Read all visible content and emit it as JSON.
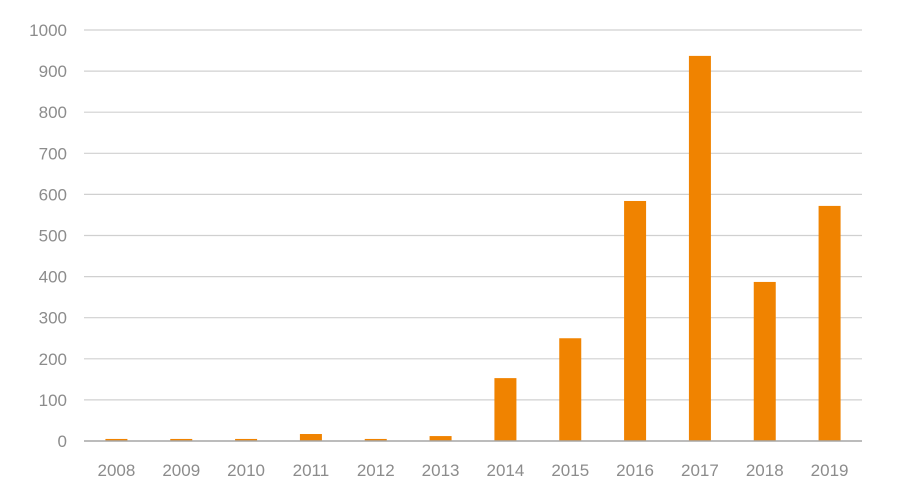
{
  "chart_data": {
    "type": "bar",
    "categories": [
      "2008",
      "2009",
      "2010",
      "2011",
      "2012",
      "2013",
      "2014",
      "2015",
      "2016",
      "2017",
      "2018",
      "2019"
    ],
    "values": [
      5,
      5,
      5,
      17,
      5,
      12,
      153,
      250,
      584,
      937,
      387,
      572
    ],
    "title": "",
    "xlabel": "",
    "ylabel": "",
    "ylim": [
      0,
      1000
    ],
    "yticks": [
      0,
      100,
      200,
      300,
      400,
      500,
      600,
      700,
      800,
      900,
      1000
    ],
    "grid": true,
    "legend": "none",
    "colors": {
      "bar": "#f08300",
      "grid": "#d0d0d0",
      "axis": "#a6a6a6",
      "tick_text": "#8c8c8c"
    }
  }
}
